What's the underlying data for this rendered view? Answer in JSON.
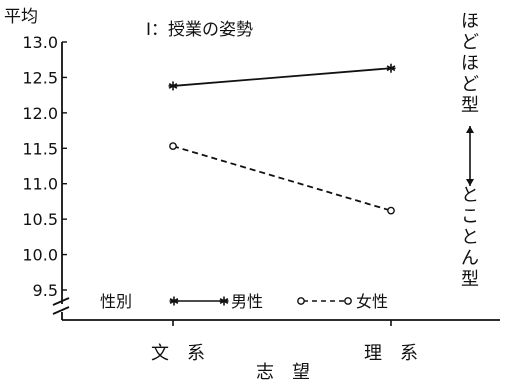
{
  "chart_data": {
    "type": "line",
    "title": "I：授業の姿勢",
    "ylabel": "平均",
    "xlabel": "志　望",
    "categories": [
      "文　系",
      "理　系"
    ],
    "yticks": [
      "13.0",
      "12.5",
      "12.0",
      "11.5",
      "11.0",
      "10.5",
      "10.0",
      "9.5"
    ],
    "ylim": [
      9.5,
      13.0
    ],
    "axis_break": true,
    "grid": false,
    "legend_title": "性別",
    "legend_position": "bottom",
    "series": [
      {
        "name": "男性",
        "marker": "asterisk",
        "line": "solid",
        "values": [
          12.38,
          12.63
        ]
      },
      {
        "name": "女性",
        "marker": "circle",
        "line": "dashed",
        "values": [
          11.53,
          10.62
        ]
      }
    ],
    "right_annotation": {
      "top": "ほどほど型",
      "bottom": "とことん型",
      "arrow": "double"
    }
  }
}
